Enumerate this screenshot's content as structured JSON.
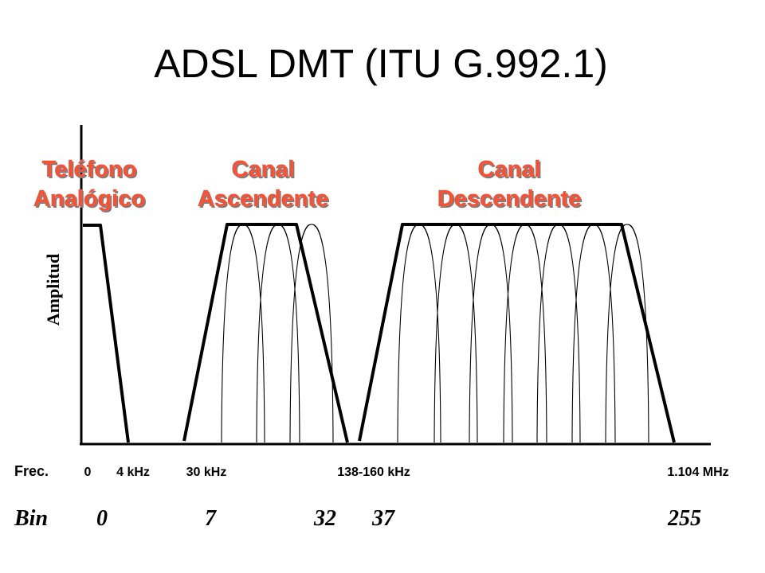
{
  "title": "ADSL DMT (ITU G.992.1)",
  "bands": {
    "phone": {
      "line1": "Teléfono",
      "line2": "Analógico"
    },
    "upstream": {
      "line1": "Canal",
      "line2": "Ascendente"
    },
    "downstream": {
      "line1": "Canal",
      "line2": "Descendente"
    }
  },
  "axis": {
    "y_label": "Amplitud"
  },
  "frequency": {
    "header": "Frec.",
    "ticks": [
      "0",
      "4 kHz",
      "30 kHz",
      "138-160 kHz",
      "1.104 MHz"
    ]
  },
  "bins": {
    "header": "Bin",
    "values": [
      "0",
      "7",
      "32",
      "37",
      "255"
    ]
  },
  "colors": {
    "label_fill": "#ff4d2e",
    "line": "#000000"
  }
}
